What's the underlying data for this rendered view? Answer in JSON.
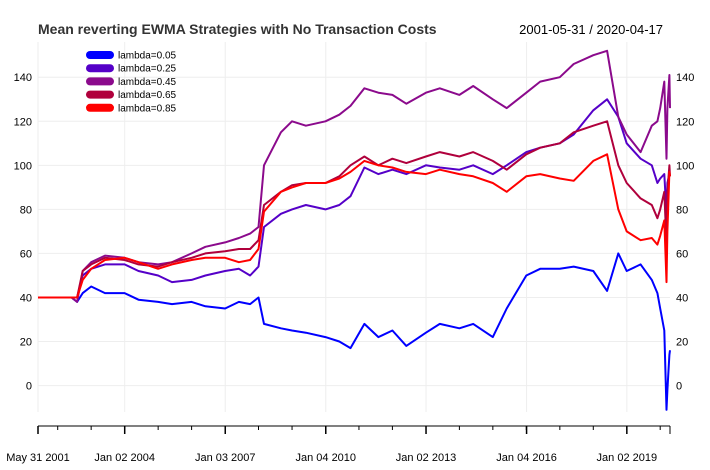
{
  "chart_data": {
    "type": "line",
    "title": "Mean reverting EWMA Strategies with No Transaction Costs",
    "date_range": "2001-05-31 / 2020-04-17",
    "x_tick_labels": [
      "May 31 2001",
      "Jan 02 2004",
      "Jan 03 2007",
      "Jan 04 2010",
      "Jan 02 2013",
      "Jan 04 2016",
      "Jan 02 2019"
    ],
    "y_tick_labels": [
      "0",
      "20",
      "40",
      "60",
      "80",
      "100",
      "120",
      "140"
    ],
    "ylim": [
      -12,
      156
    ],
    "xlim": [
      "2001-05-31",
      "2020-04-17"
    ],
    "grid": true,
    "legend_position": "top-left",
    "series": [
      {
        "name": "lambda=0.05",
        "color": "#0000ff",
        "points": [
          [
            "2001-05-31",
            40
          ],
          [
            "2002-06-01",
            40
          ],
          [
            "2002-08-01",
            38
          ],
          [
            "2002-10-01",
            42
          ],
          [
            "2003-01-01",
            45
          ],
          [
            "2003-06-01",
            42
          ],
          [
            "2004-01-01",
            42
          ],
          [
            "2004-06-01",
            39
          ],
          [
            "2005-01-01",
            38
          ],
          [
            "2005-06-01",
            37
          ],
          [
            "2006-01-01",
            38
          ],
          [
            "2006-06-01",
            36
          ],
          [
            "2007-01-01",
            35
          ],
          [
            "2007-06-01",
            38
          ],
          [
            "2007-10-01",
            37
          ],
          [
            "2008-01-01",
            40
          ],
          [
            "2008-03-01",
            28
          ],
          [
            "2008-09-01",
            26
          ],
          [
            "2009-01-01",
            25
          ],
          [
            "2009-06-01",
            24
          ],
          [
            "2010-01-01",
            22
          ],
          [
            "2010-06-01",
            20
          ],
          [
            "2010-10-01",
            17
          ],
          [
            "2011-03-01",
            28
          ],
          [
            "2011-08-01",
            22
          ],
          [
            "2012-01-01",
            25
          ],
          [
            "2012-06-01",
            18
          ],
          [
            "2013-01-01",
            24
          ],
          [
            "2013-06-01",
            28
          ],
          [
            "2014-01-01",
            26
          ],
          [
            "2014-06-01",
            28
          ],
          [
            "2015-01-01",
            22
          ],
          [
            "2015-06-01",
            35
          ],
          [
            "2016-01-01",
            50
          ],
          [
            "2016-06-01",
            53
          ],
          [
            "2017-01-01",
            53
          ],
          [
            "2017-06-01",
            54
          ],
          [
            "2018-01-01",
            52
          ],
          [
            "2018-06-01",
            43
          ],
          [
            "2018-10-01",
            60
          ],
          [
            "2019-01-01",
            52
          ],
          [
            "2019-06-01",
            55
          ],
          [
            "2019-10-01",
            48
          ],
          [
            "2019-12-01",
            42
          ],
          [
            "2020-01-01",
            35
          ],
          [
            "2020-02-15",
            25
          ],
          [
            "2020-03-10",
            -11
          ],
          [
            "2020-03-20",
            -2
          ],
          [
            "2020-04-10",
            14
          ],
          [
            "2020-04-17",
            16
          ]
        ]
      },
      {
        "name": "lambda=0.25",
        "color": "#5500c8",
        "points": [
          [
            "2001-05-31",
            40
          ],
          [
            "2002-06-01",
            40
          ],
          [
            "2002-08-01",
            40
          ],
          [
            "2002-10-01",
            50
          ],
          [
            "2003-01-01",
            53
          ],
          [
            "2003-06-01",
            55
          ],
          [
            "2004-01-01",
            55
          ],
          [
            "2004-06-01",
            52
          ],
          [
            "2005-01-01",
            50
          ],
          [
            "2005-06-01",
            47
          ],
          [
            "2006-01-01",
            48
          ],
          [
            "2006-06-01",
            50
          ],
          [
            "2007-01-01",
            52
          ],
          [
            "2007-06-01",
            53
          ],
          [
            "2007-10-01",
            50
          ],
          [
            "2008-01-01",
            54
          ],
          [
            "2008-03-01",
            72
          ],
          [
            "2008-09-01",
            78
          ],
          [
            "2009-01-01",
            80
          ],
          [
            "2009-06-01",
            82
          ],
          [
            "2010-01-01",
            80
          ],
          [
            "2010-06-01",
            82
          ],
          [
            "2010-10-01",
            86
          ],
          [
            "2011-03-01",
            99
          ],
          [
            "2011-08-01",
            96
          ],
          [
            "2012-01-01",
            98
          ],
          [
            "2012-06-01",
            96
          ],
          [
            "2013-01-01",
            100
          ],
          [
            "2013-06-01",
            99
          ],
          [
            "2014-01-01",
            98
          ],
          [
            "2014-06-01",
            100
          ],
          [
            "2015-01-01",
            96
          ],
          [
            "2015-06-01",
            100
          ],
          [
            "2016-01-01",
            106
          ],
          [
            "2016-06-01",
            108
          ],
          [
            "2017-01-01",
            110
          ],
          [
            "2017-06-01",
            114
          ],
          [
            "2018-01-01",
            125
          ],
          [
            "2018-06-01",
            130
          ],
          [
            "2018-10-01",
            122
          ],
          [
            "2019-01-01",
            110
          ],
          [
            "2019-06-01",
            103
          ],
          [
            "2019-10-01",
            100
          ],
          [
            "2019-12-01",
            92
          ],
          [
            "2020-01-01",
            94
          ],
          [
            "2020-02-15",
            96
          ],
          [
            "2020-03-10",
            78
          ],
          [
            "2020-03-20",
            92
          ],
          [
            "2020-04-10",
            96
          ],
          [
            "2020-04-17",
            95
          ]
        ]
      },
      {
        "name": "lambda=0.45",
        "color": "#8b0a8c",
        "points": [
          [
            "2001-05-31",
            40
          ],
          [
            "2002-06-01",
            40
          ],
          [
            "2002-08-01",
            38
          ],
          [
            "2002-10-01",
            52
          ],
          [
            "2003-01-01",
            56
          ],
          [
            "2003-06-01",
            59
          ],
          [
            "2004-01-01",
            58
          ],
          [
            "2004-06-01",
            56
          ],
          [
            "2005-01-01",
            55
          ],
          [
            "2005-06-01",
            56
          ],
          [
            "2006-01-01",
            60
          ],
          [
            "2006-06-01",
            63
          ],
          [
            "2007-01-01",
            65
          ],
          [
            "2007-06-01",
            67
          ],
          [
            "2007-10-01",
            69
          ],
          [
            "2008-01-01",
            72
          ],
          [
            "2008-03-01",
            100
          ],
          [
            "2008-09-01",
            115
          ],
          [
            "2009-01-01",
            120
          ],
          [
            "2009-06-01",
            118
          ],
          [
            "2010-01-01",
            120
          ],
          [
            "2010-06-01",
            123
          ],
          [
            "2010-10-01",
            127
          ],
          [
            "2011-03-01",
            135
          ],
          [
            "2011-08-01",
            133
          ],
          [
            "2012-01-01",
            132
          ],
          [
            "2012-06-01",
            128
          ],
          [
            "2013-01-01",
            133
          ],
          [
            "2013-06-01",
            135
          ],
          [
            "2014-01-01",
            132
          ],
          [
            "2014-06-01",
            136
          ],
          [
            "2015-01-01",
            130
          ],
          [
            "2015-06-01",
            126
          ],
          [
            "2016-01-01",
            133
          ],
          [
            "2016-06-01",
            138
          ],
          [
            "2017-01-01",
            140
          ],
          [
            "2017-06-01",
            146
          ],
          [
            "2018-01-01",
            150
          ],
          [
            "2018-06-01",
            152
          ],
          [
            "2018-10-01",
            122
          ],
          [
            "2019-01-01",
            114
          ],
          [
            "2019-06-01",
            106
          ],
          [
            "2019-10-01",
            118
          ],
          [
            "2019-12-01",
            120
          ],
          [
            "2020-01-01",
            126
          ],
          [
            "2020-02-15",
            138
          ],
          [
            "2020-03-10",
            103
          ],
          [
            "2020-03-20",
            126
          ],
          [
            "2020-04-10",
            141
          ],
          [
            "2020-04-17",
            126
          ]
        ]
      },
      {
        "name": "lambda=0.65",
        "color": "#b0003c",
        "points": [
          [
            "2001-05-31",
            40
          ],
          [
            "2002-06-01",
            40
          ],
          [
            "2002-08-01",
            40
          ],
          [
            "2002-10-01",
            52
          ],
          [
            "2003-01-01",
            55
          ],
          [
            "2003-06-01",
            58
          ],
          [
            "2004-01-01",
            57
          ],
          [
            "2004-06-01",
            55
          ],
          [
            "2005-01-01",
            54
          ],
          [
            "2005-06-01",
            56
          ],
          [
            "2006-01-01",
            58
          ],
          [
            "2006-06-01",
            60
          ],
          [
            "2007-01-01",
            61
          ],
          [
            "2007-06-01",
            62
          ],
          [
            "2007-10-01",
            62
          ],
          [
            "2008-01-01",
            66
          ],
          [
            "2008-03-01",
            82
          ],
          [
            "2008-09-01",
            88
          ],
          [
            "2009-01-01",
            91
          ],
          [
            "2009-06-01",
            92
          ],
          [
            "2010-01-01",
            92
          ],
          [
            "2010-06-01",
            95
          ],
          [
            "2010-10-01",
            100
          ],
          [
            "2011-03-01",
            104
          ],
          [
            "2011-08-01",
            100
          ],
          [
            "2012-01-01",
            103
          ],
          [
            "2012-06-01",
            101
          ],
          [
            "2013-01-01",
            104
          ],
          [
            "2013-06-01",
            106
          ],
          [
            "2014-01-01",
            104
          ],
          [
            "2014-06-01",
            106
          ],
          [
            "2015-01-01",
            102
          ],
          [
            "2015-06-01",
            98
          ],
          [
            "2016-01-01",
            105
          ],
          [
            "2016-06-01",
            108
          ],
          [
            "2017-01-01",
            110
          ],
          [
            "2017-06-01",
            115
          ],
          [
            "2018-01-01",
            118
          ],
          [
            "2018-06-01",
            120
          ],
          [
            "2018-10-01",
            100
          ],
          [
            "2019-01-01",
            92
          ],
          [
            "2019-06-01",
            85
          ],
          [
            "2019-10-01",
            82
          ],
          [
            "2019-12-01",
            76
          ],
          [
            "2020-01-01",
            80
          ],
          [
            "2020-02-15",
            88
          ],
          [
            "2020-03-10",
            64
          ],
          [
            "2020-03-20",
            88
          ],
          [
            "2020-04-10",
            100
          ],
          [
            "2020-04-17",
            95
          ]
        ]
      },
      {
        "name": "lambda=0.85",
        "color": "#ff0000",
        "points": [
          [
            "2001-05-31",
            40
          ],
          [
            "2002-06-01",
            40
          ],
          [
            "2002-08-01",
            40
          ],
          [
            "2002-10-01",
            48
          ],
          [
            "2003-01-01",
            53
          ],
          [
            "2003-06-01",
            57
          ],
          [
            "2004-01-01",
            58
          ],
          [
            "2004-06-01",
            56
          ],
          [
            "2005-01-01",
            53
          ],
          [
            "2005-06-01",
            55
          ],
          [
            "2006-01-01",
            57
          ],
          [
            "2006-06-01",
            58
          ],
          [
            "2007-01-01",
            58
          ],
          [
            "2007-06-01",
            56
          ],
          [
            "2007-10-01",
            57
          ],
          [
            "2008-01-01",
            62
          ],
          [
            "2008-03-01",
            79
          ],
          [
            "2008-09-01",
            88
          ],
          [
            "2009-01-01",
            90
          ],
          [
            "2009-06-01",
            92
          ],
          [
            "2010-01-01",
            92
          ],
          [
            "2010-06-01",
            94
          ],
          [
            "2010-10-01",
            97
          ],
          [
            "2011-03-01",
            102
          ],
          [
            "2011-08-01",
            100
          ],
          [
            "2012-01-01",
            99
          ],
          [
            "2012-06-01",
            97
          ],
          [
            "2013-01-01",
            96
          ],
          [
            "2013-06-01",
            98
          ],
          [
            "2014-01-01",
            96
          ],
          [
            "2014-06-01",
            95
          ],
          [
            "2015-01-01",
            92
          ],
          [
            "2015-06-01",
            88
          ],
          [
            "2016-01-01",
            95
          ],
          [
            "2016-06-01",
            96
          ],
          [
            "2017-01-01",
            94
          ],
          [
            "2017-06-01",
            93
          ],
          [
            "2018-01-01",
            102
          ],
          [
            "2018-06-01",
            105
          ],
          [
            "2018-10-01",
            80
          ],
          [
            "2019-01-01",
            70
          ],
          [
            "2019-06-01",
            66
          ],
          [
            "2019-10-01",
            67
          ],
          [
            "2019-12-01",
            64
          ],
          [
            "2020-01-01",
            68
          ],
          [
            "2020-02-15",
            75
          ],
          [
            "2020-03-10",
            47
          ],
          [
            "2020-03-20",
            70
          ],
          [
            "2020-04-10",
            97
          ],
          [
            "2020-04-17",
            95
          ]
        ]
      }
    ]
  }
}
